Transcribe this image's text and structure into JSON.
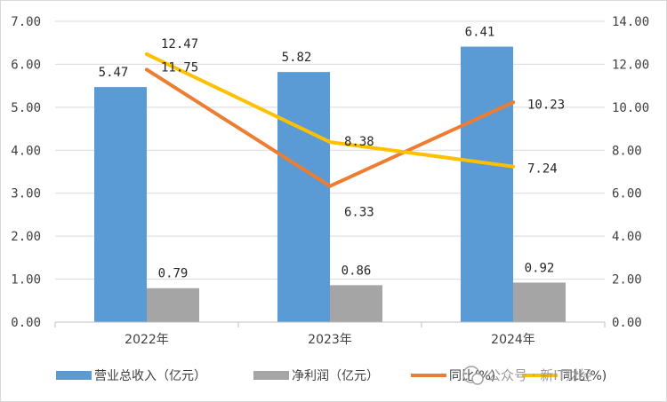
{
  "chart_data": {
    "type": "bar",
    "categories": [
      "2022年",
      "2023年",
      "2024年"
    ],
    "series": [
      {
        "name": "营业总收入（亿元）",
        "type": "bar",
        "axis": "left",
        "color": "#5B9BD5",
        "values": [
          5.47,
          5.82,
          6.41
        ],
        "labels": [
          "5.47",
          "5.82",
          "6.41"
        ]
      },
      {
        "name": "净利润（亿元）",
        "type": "bar",
        "axis": "left",
        "color": "#A5A5A5",
        "values": [
          0.79,
          0.86,
          0.92
        ],
        "labels": [
          "0.79",
          "0.86",
          "0.92"
        ]
      },
      {
        "name": "同比(%)",
        "type": "line",
        "axis": "right",
        "color": "#ED7D31",
        "values": [
          11.75,
          6.33,
          10.23
        ],
        "labels": [
          "11.75",
          "6.33",
          "10.23"
        ]
      },
      {
        "name": "同比(%)",
        "type": "line",
        "axis": "right",
        "color": "#FFC000",
        "values": [
          12.47,
          8.38,
          7.24
        ],
        "labels": [
          "12.47",
          "8.38",
          "7.24"
        ]
      }
    ],
    "y_left": {
      "min": 0,
      "max": 7,
      "step": 1,
      "tick_labels": [
        "0.00",
        "1.00",
        "2.00",
        "3.00",
        "4.00",
        "5.00",
        "6.00",
        "7.00"
      ]
    },
    "y_right": {
      "min": 0,
      "max": 14,
      "step": 2,
      "tick_labels": [
        "0.00",
        "2.00",
        "4.00",
        "6.00",
        "8.00",
        "10.00",
        "12.00",
        "14.00"
      ]
    },
    "grid": true,
    "legend_position": "bottom",
    "watermark": "公众号 · 新IT财经"
  }
}
